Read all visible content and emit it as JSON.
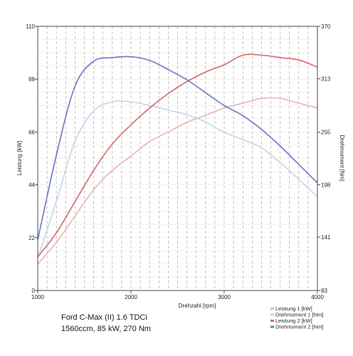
{
  "chart_data": {
    "type": "line",
    "title": "",
    "caption": [
      "Ford C-Max (II) 1.6 TDCi",
      "1560ccm, 85 kW, 270 Nm"
    ],
    "xlabel": "Drehzahl [rpm]",
    "ylabel_left": "Leistung [kW]",
    "ylabel_right": "Drehmoment [Nm]",
    "xlim": [
      1000,
      4000
    ],
    "ylim_left": [
      0,
      110
    ],
    "ylim_right": [
      83,
      370
    ],
    "x_ticks": [
      1000,
      2000,
      3000,
      4000
    ],
    "y_ticks_left": [
      0,
      22,
      44,
      66,
      88,
      110
    ],
    "y_ticks_right": [
      83,
      141,
      198,
      255,
      313,
      370
    ],
    "grid": true,
    "legend_position": "bottom-right",
    "series": [
      {
        "name": "Leistung 1 [kW]",
        "axis": "left",
        "color": "#eab2b4",
        "x": [
          1000,
          1200,
          1400,
          1600,
          1800,
          2000,
          2200,
          2400,
          2600,
          2800,
          3000,
          3200,
          3400,
          3600,
          3800,
          4000
        ],
        "y": [
          11,
          20,
          31,
          42,
          50,
          56,
          62,
          66,
          70,
          73,
          76,
          78,
          80,
          80,
          78,
          76
        ]
      },
      {
        "name": "Drehmoment 1 [Nm]",
        "axis": "right",
        "color": "#c4d3ec",
        "x": [
          1000,
          1200,
          1400,
          1600,
          1800,
          2000,
          2200,
          2400,
          2600,
          2800,
          3000,
          3200,
          3400,
          3600,
          3800,
          4000
        ],
        "y": [
          118,
          180,
          245,
          278,
          288,
          288,
          284,
          279,
          274,
          266,
          255,
          247,
          238,
          222,
          204,
          185
        ]
      },
      {
        "name": "Leistung 2 [kW]",
        "axis": "left",
        "color": "#d46469",
        "x": [
          1000,
          1200,
          1400,
          1600,
          1800,
          2000,
          2200,
          2400,
          2600,
          2800,
          3000,
          3200,
          3400,
          3600,
          3800,
          4000
        ],
        "y": [
          14,
          24,
          37,
          50,
          61,
          69,
          76,
          82,
          87,
          91,
          94,
          98,
          98,
          97,
          96,
          93
        ]
      },
      {
        "name": "Drehmoment 2 [Nm]",
        "axis": "right",
        "color": "#6673c6",
        "x": [
          1000,
          1200,
          1400,
          1600,
          1800,
          2000,
          2200,
          2400,
          2600,
          2800,
          3000,
          3200,
          3400,
          3600,
          3800,
          4000
        ],
        "y": [
          138,
          230,
          305,
          332,
          336,
          337,
          333,
          323,
          312,
          298,
          284,
          273,
          258,
          240,
          220,
          200
        ]
      }
    ]
  }
}
